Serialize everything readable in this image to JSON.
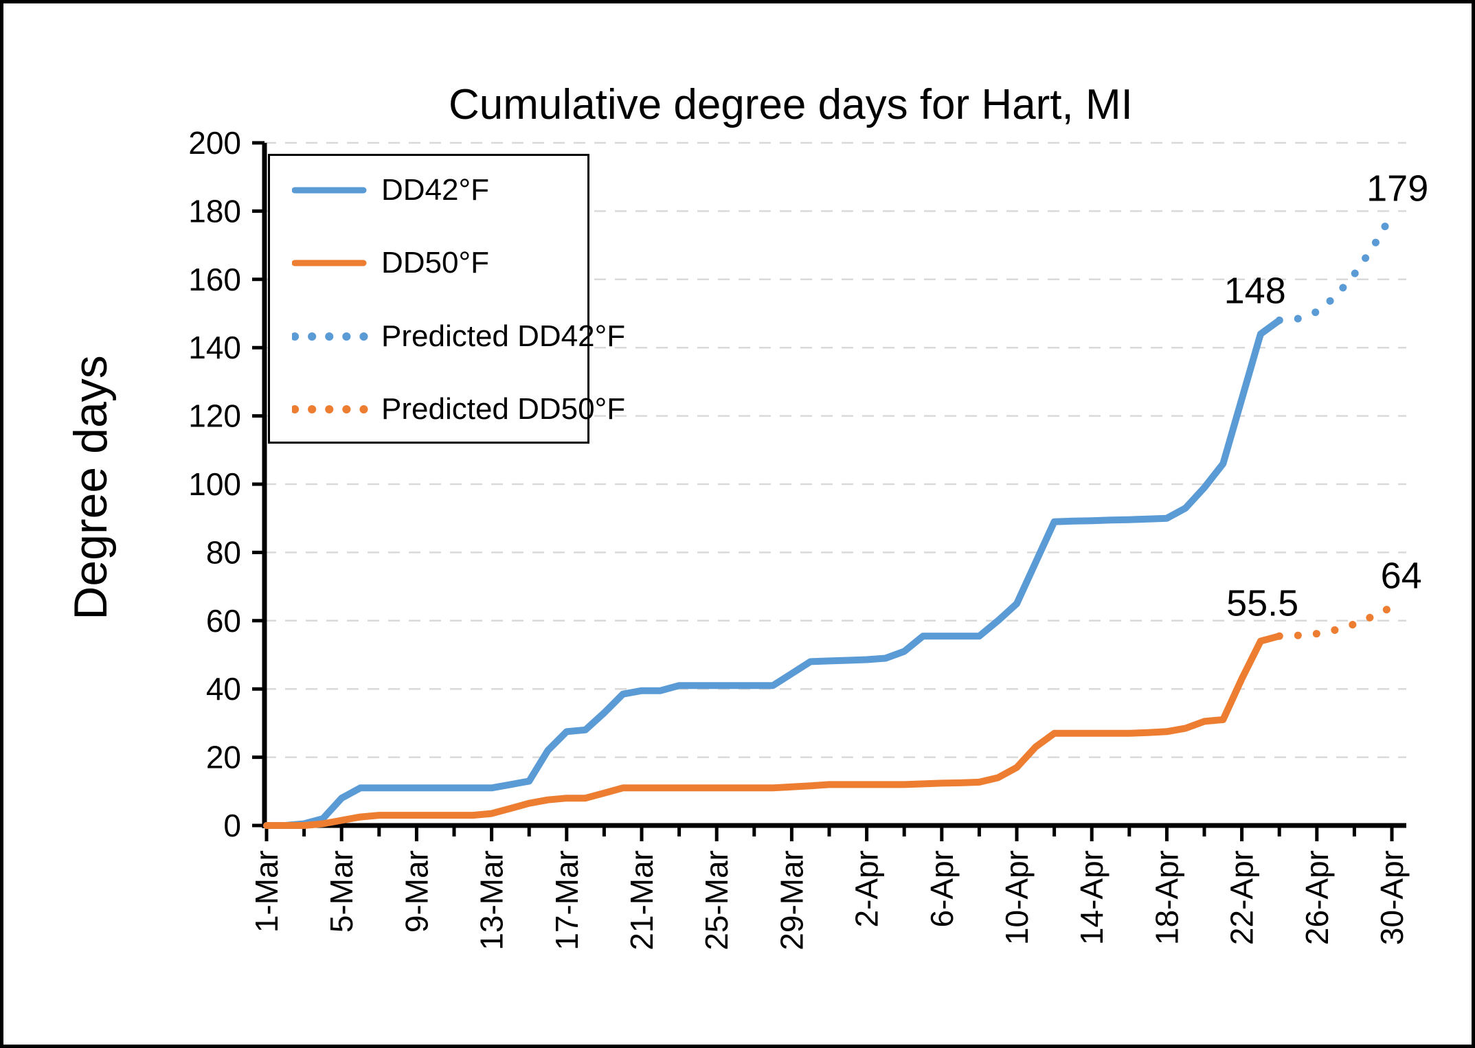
{
  "figure": {
    "title": "Cumulative degree days for Hart, MI",
    "y_axis_title": "Degree days",
    "colors": {
      "series_blue": "#5B9BD5",
      "series_orange": "#ED7D31",
      "gridline": "#D9D9D9",
      "axis": "#000000",
      "background": "#FFFFFF",
      "border": "#000000",
      "text": "#000000"
    }
  },
  "legend": {
    "position": "top-left-inside",
    "items": [
      {
        "label": "DD42°F",
        "style": "solid",
        "color": "#5B9BD5"
      },
      {
        "label": "DD50°F",
        "style": "solid",
        "color": "#ED7D31"
      },
      {
        "label": "Predicted DD42°F",
        "style": "dotted",
        "color": "#5B9BD5"
      },
      {
        "label": "Predicted DD50°F",
        "style": "dotted",
        "color": "#ED7D31"
      }
    ]
  },
  "chart_data": {
    "type": "line",
    "title": "Cumulative degree days for Hart, MI",
    "xlabel": "",
    "ylabel": "Degree days",
    "ylim": [
      0,
      200
    ],
    "ytick_step": 20,
    "y_tick_labels": [
      "0",
      "20",
      "40",
      "60",
      "80",
      "100",
      "120",
      "140",
      "160",
      "180",
      "200"
    ],
    "grid": "horizontal-dashed",
    "legend_position": "top-left-inside",
    "x": [
      "1-Mar",
      "2-Mar",
      "3-Mar",
      "4-Mar",
      "5-Mar",
      "6-Mar",
      "7-Mar",
      "8-Mar",
      "9-Mar",
      "10-Mar",
      "11-Mar",
      "12-Mar",
      "13-Mar",
      "14-Mar",
      "15-Mar",
      "16-Mar",
      "17-Mar",
      "18-Mar",
      "19-Mar",
      "20-Mar",
      "21-Mar",
      "22-Mar",
      "23-Mar",
      "24-Mar",
      "25-Mar",
      "26-Mar",
      "27-Mar",
      "28-Mar",
      "29-Mar",
      "30-Mar",
      "31-Mar",
      "1-Apr",
      "2-Apr",
      "3-Apr",
      "4-Apr",
      "5-Apr",
      "6-Apr",
      "7-Apr",
      "8-Apr",
      "9-Apr",
      "10-Apr",
      "11-Apr",
      "12-Apr",
      "13-Apr",
      "14-Apr",
      "15-Apr",
      "16-Apr",
      "17-Apr",
      "18-Apr",
      "19-Apr",
      "20-Apr",
      "21-Apr",
      "22-Apr",
      "23-Apr",
      "24-Apr",
      "25-Apr",
      "26-Apr",
      "27-Apr",
      "28-Apr",
      "29-Apr",
      "30-Apr"
    ],
    "x_tick_labels": [
      "1-Mar",
      "5-Mar",
      "9-Mar",
      "13-Mar",
      "17-Mar",
      "21-Mar",
      "25-Mar",
      "29-Mar",
      "2-Apr",
      "6-Apr",
      "10-Apr",
      "14-Apr",
      "18-Apr",
      "22-Apr",
      "26-Apr",
      "30-Apr"
    ],
    "x_major_tick_every_days": 4,
    "x_minor_tick_every_days": 2,
    "series": [
      {
        "name": "DD42°F",
        "role": "actual",
        "style": "solid",
        "color": "#5B9BD5",
        "start_index": 0,
        "values": [
          0,
          0,
          0.5,
          2,
          8,
          11,
          11,
          11,
          11,
          11,
          11,
          11,
          11,
          12,
          13,
          22,
          27.5,
          28,
          33,
          38.5,
          39.5,
          39.5,
          41,
          41,
          41,
          41,
          41,
          41,
          44.5,
          48,
          48.2,
          48.4,
          48.6,
          49,
          51,
          55.5,
          55.5,
          55.5,
          55.5,
          60,
          65,
          77,
          89,
          89.2,
          89.3,
          89.5,
          89.6,
          89.8,
          90,
          93,
          99,
          106,
          125,
          144,
          148
        ]
      },
      {
        "name": "DD50°F",
        "role": "actual",
        "style": "solid",
        "color": "#ED7D31",
        "start_index": 0,
        "values": [
          0,
          0,
          0,
          0.5,
          1.5,
          2.5,
          3,
          3,
          3,
          3,
          3,
          3,
          3.5,
          5,
          6.5,
          7.5,
          8,
          8,
          9.5,
          11,
          11,
          11,
          11,
          11,
          11,
          11,
          11,
          11,
          11.3,
          11.6,
          12,
          12,
          12,
          12,
          12,
          12.2,
          12.4,
          12.5,
          12.7,
          14,
          17,
          23,
          27,
          27,
          27,
          27,
          27,
          27.2,
          27.5,
          28.5,
          30.5,
          31,
          43,
          54,
          55.5
        ]
      },
      {
        "name": "Predicted DD42°F",
        "role": "predicted",
        "style": "dotted",
        "color": "#5B9BD5",
        "start_index": 54,
        "values": [
          148,
          148.5,
          150.5,
          155,
          161.5,
          169.5,
          179
        ]
      },
      {
        "name": "Predicted DD50°F",
        "role": "predicted",
        "style": "dotted",
        "color": "#ED7D31",
        "start_index": 54,
        "values": [
          55.5,
          55.7,
          56.2,
          57.3,
          59,
          61.3,
          64
        ]
      }
    ],
    "annotations": [
      {
        "text": "148",
        "series": "DD42°F",
        "day_index": 52.7,
        "value": 157
      },
      {
        "text": "179",
        "series": "Predicted DD42°F",
        "day_index": 60.3,
        "value": 187
      },
      {
        "text": "55.5",
        "series": "DD50°F",
        "day_index": 53.1,
        "value": 65.5
      },
      {
        "text": "64",
        "series": "Predicted DD50°F",
        "day_index": 60.5,
        "value": 73.5
      }
    ]
  }
}
